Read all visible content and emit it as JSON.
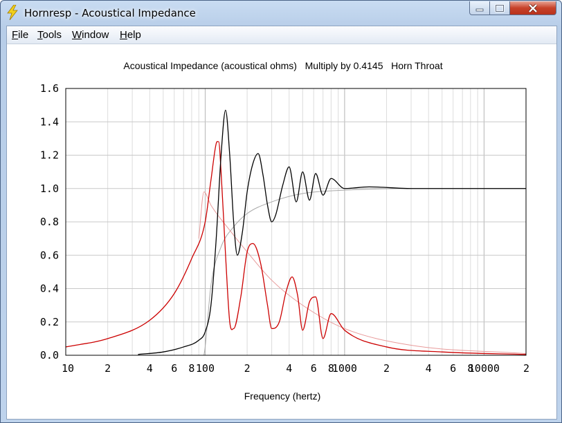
{
  "window": {
    "title": "Hornresp - Acoustical Impedance",
    "icons": {
      "app": "lightning-bolt-icon",
      "minimize": "minimize-icon",
      "maximize": "maximize-icon",
      "close": "close-icon"
    }
  },
  "menu": {
    "items": [
      {
        "accel": "F",
        "rest": "ile"
      },
      {
        "accel": "T",
        "rest": "ools"
      },
      {
        "accel": "W",
        "rest": "indow"
      },
      {
        "accel": "H",
        "rest": "elp"
      }
    ]
  },
  "chart_data": {
    "type": "line",
    "title": "Acoustical Impedance (acoustical ohms)   Multiply by 0.4145   Horn Throat",
    "xlabel": "Frequency (hertz)",
    "ylabel": "",
    "x_scale": "log",
    "xlim": [
      10,
      20000
    ],
    "ylim": [
      0,
      1.6
    ],
    "grid": true,
    "y_ticks": [
      "0.0",
      "0.2",
      "0.4",
      "0.6",
      "0.8",
      "1.0",
      "1.2",
      "1.4",
      "1.6"
    ],
    "x_ticks": [
      {
        "value": 10,
        "label": "10"
      },
      {
        "value": 20,
        "label": "2"
      },
      {
        "value": 40,
        "label": "4"
      },
      {
        "value": 60,
        "label": "6"
      },
      {
        "value": 80,
        "label": "8"
      },
      {
        "value": 100,
        "label": "100"
      },
      {
        "value": 200,
        "label": "2"
      },
      {
        "value": 400,
        "label": "4"
      },
      {
        "value": 600,
        "label": "6"
      },
      {
        "value": 800,
        "label": "8"
      },
      {
        "value": 1000,
        "label": "1000"
      },
      {
        "value": 2000,
        "label": "2"
      },
      {
        "value": 4000,
        "label": "4"
      },
      {
        "value": 6000,
        "label": "6"
      },
      {
        "value": 8000,
        "label": "8"
      },
      {
        "value": 10000,
        "label": "10000"
      },
      {
        "value": 20000,
        "label": "2"
      }
    ],
    "series": [
      {
        "role": "resistance (black)",
        "color": "#000000",
        "points": [
          [
            33,
            0.005
          ],
          [
            50,
            0.02
          ],
          [
            70,
            0.05
          ],
          [
            90,
            0.09
          ],
          [
            100,
            0.14
          ],
          [
            110,
            0.3
          ],
          [
            120,
            0.7
          ],
          [
            130,
            1.2
          ],
          [
            140,
            1.47
          ],
          [
            150,
            1.2
          ],
          [
            160,
            0.8
          ],
          [
            170,
            0.6
          ],
          [
            185,
            0.74
          ],
          [
            200,
            0.98
          ],
          [
            220,
            1.15
          ],
          [
            240,
            1.21
          ],
          [
            260,
            1.08
          ],
          [
            280,
            0.9
          ],
          [
            300,
            0.8
          ],
          [
            320,
            0.84
          ],
          [
            360,
            1.02
          ],
          [
            400,
            1.13
          ],
          [
            450,
            0.92
          ],
          [
            500,
            1.1
          ],
          [
            560,
            0.93
          ],
          [
            620,
            1.09
          ],
          [
            700,
            0.96
          ],
          [
            800,
            1.06
          ],
          [
            1000,
            1.0
          ],
          [
            1500,
            1.01
          ],
          [
            3000,
            1.0
          ],
          [
            20000,
            1.0
          ]
        ]
      },
      {
        "role": "reactance (red)",
        "color": "#cc0000",
        "points": [
          [
            10,
            0.05
          ],
          [
            20,
            0.1
          ],
          [
            40,
            0.21
          ],
          [
            60,
            0.37
          ],
          [
            80,
            0.58
          ],
          [
            100,
            0.8
          ],
          [
            110,
            1.05
          ],
          [
            120,
            1.27
          ],
          [
            125,
            1.28
          ],
          [
            130,
            1.1
          ],
          [
            140,
            0.6
          ],
          [
            150,
            0.2
          ],
          [
            160,
            0.16
          ],
          [
            180,
            0.35
          ],
          [
            200,
            0.62
          ],
          [
            220,
            0.67
          ],
          [
            250,
            0.55
          ],
          [
            280,
            0.3
          ],
          [
            300,
            0.16
          ],
          [
            340,
            0.2
          ],
          [
            380,
            0.38
          ],
          [
            420,
            0.47
          ],
          [
            460,
            0.36
          ],
          [
            500,
            0.15
          ],
          [
            560,
            0.32
          ],
          [
            620,
            0.35
          ],
          [
            700,
            0.1
          ],
          [
            800,
            0.25
          ],
          [
            1000,
            0.15
          ],
          [
            2000,
            0.05
          ],
          [
            5000,
            0.02
          ],
          [
            20000,
            0.005
          ]
        ]
      },
      {
        "role": "infinite-horn resistance (grey)",
        "color": "#a8a8a8",
        "points": [
          [
            98,
            0.0
          ],
          [
            100,
            0.05
          ],
          [
            110,
            0.42
          ],
          [
            130,
            0.65
          ],
          [
            160,
            0.77
          ],
          [
            200,
            0.85
          ],
          [
            300,
            0.92
          ],
          [
            500,
            0.97
          ],
          [
            1000,
            0.99
          ],
          [
            3000,
            1.0
          ],
          [
            20000,
            1.0
          ]
        ]
      },
      {
        "role": "infinite-horn reactance (pink)",
        "color": "#e89a9a",
        "points": [
          [
            90,
            0.7
          ],
          [
            98,
            0.98
          ],
          [
            110,
            0.9
          ],
          [
            150,
            0.75
          ],
          [
            200,
            0.62
          ],
          [
            300,
            0.45
          ],
          [
            500,
            0.3
          ],
          [
            1000,
            0.16
          ],
          [
            3000,
            0.06
          ],
          [
            20000,
            0.01
          ]
        ]
      }
    ]
  }
}
